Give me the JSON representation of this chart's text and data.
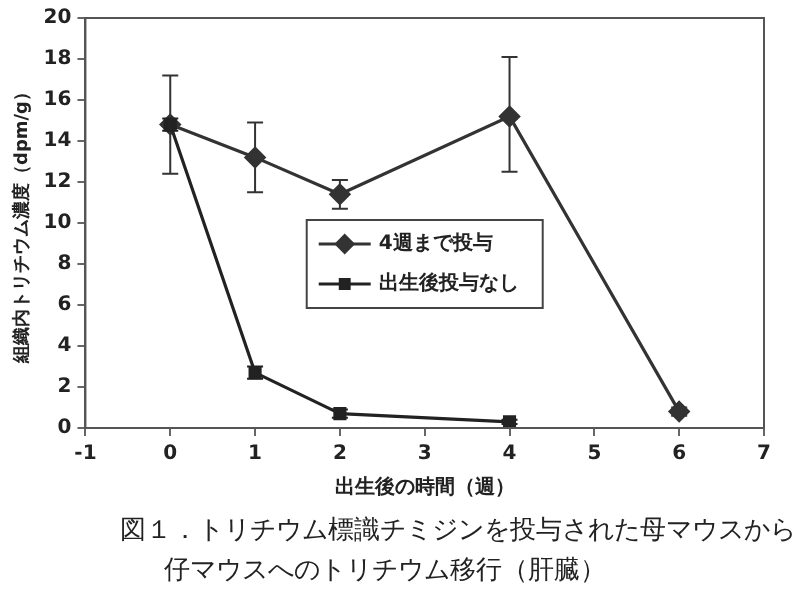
{
  "chart_data": {
    "type": "line",
    "xlabel": "出生後の時間（週）",
    "ylabel": "組織内トリチウム濃度（dpm/g）",
    "xlim": [
      -1,
      7
    ],
    "xticks": [
      -1,
      0,
      1,
      2,
      3,
      4,
      5,
      6,
      7
    ],
    "ylim": [
      0,
      20
    ],
    "yticks": [
      0,
      2,
      4,
      6,
      8,
      10,
      12,
      14,
      16,
      18,
      20
    ],
    "grid": false,
    "legend": "center",
    "line_style": "solid",
    "series": [
      {
        "name": "4週まで投与",
        "color": "#333333",
        "marker": "diamond",
        "x": [
          0,
          1,
          2,
          4,
          6
        ],
        "values": [
          14.8,
          13.2,
          11.4,
          15.2,
          0.8
        ],
        "errors": [
          [
            12.4,
            17.2
          ],
          [
            11.5,
            14.9
          ],
          [
            10.7,
            12.1
          ],
          [
            12.5,
            18.1
          ],
          [
            0.6,
            1.0
          ]
        ]
      },
      {
        "name": "出生後投与なし",
        "color": "#222222",
        "marker": "square",
        "x": [
          0,
          1,
          2,
          4
        ],
        "values": [
          14.8,
          2.7,
          0.7,
          0.3
        ],
        "errors": [
          [
            14.5,
            15.1
          ],
          [
            2.4,
            3.0
          ],
          [
            0.5,
            0.9
          ],
          [
            0.2,
            0.4
          ]
        ]
      }
    ],
    "annotations": [
      "図１．トリチウム標識チミジンを投与された母マウスから",
      "仔マウスへのトリチウム移行（肝臓）"
    ]
  }
}
